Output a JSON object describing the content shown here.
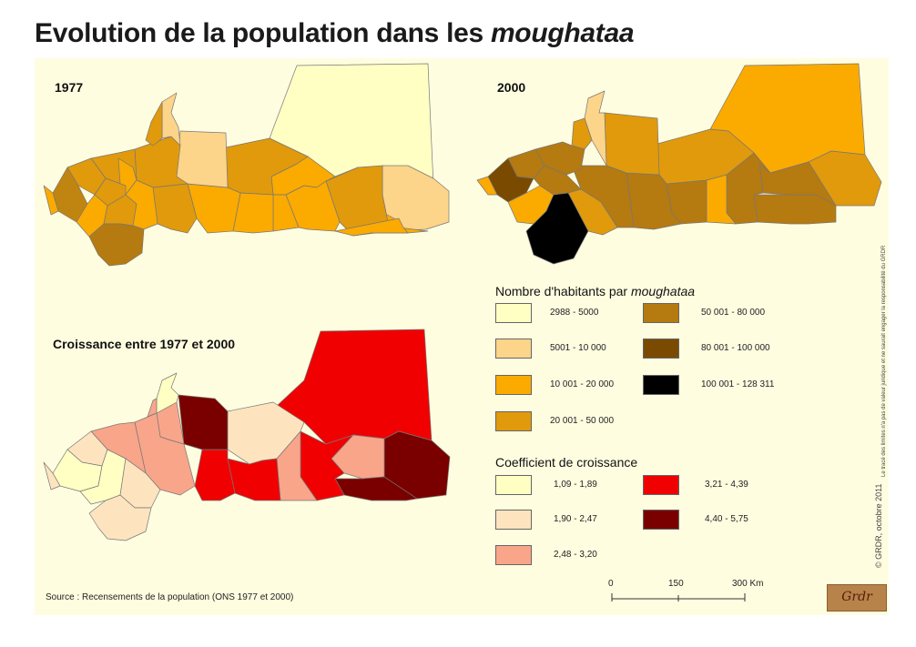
{
  "title": {
    "text": "Evolution de la population dans les",
    "text_italic": "moughataa"
  },
  "maps": {
    "label_1977": "1977",
    "label_2000": "2000",
    "label_growth": "Croissance entre 1977 et 2000"
  },
  "legend_population": {
    "heading": "Nombre d'habitants par",
    "heading_italic": "moughataa",
    "classes": [
      {
        "label": "2988 - 5000",
        "color": "#ffffc4"
      },
      {
        "label": "5001 - 10 000",
        "color": "#fcd48a"
      },
      {
        "label": "10 001 - 20 000",
        "color": "#fbaa00"
      },
      {
        "label": "20 001 -  50 000",
        "color": "#e09a0c"
      },
      {
        "label": "50 001 - 80 000",
        "color": "#b57a10"
      },
      {
        "label": "80 001 - 100 000",
        "color": "#7a4a00"
      },
      {
        "label": "100 001 - 128 311",
        "color": "#000000"
      }
    ]
  },
  "legend_growth": {
    "heading": "Coefficient de croissance",
    "classes": [
      {
        "label": "1,09 - 1,89",
        "color": "#ffffc4"
      },
      {
        "label": "1,90 - 2,47",
        "color": "#fde4bf"
      },
      {
        "label": "2,48 - 3,20",
        "color": "#f8a58a"
      },
      {
        "label": "3,21 - 4,39",
        "color": "#f00000"
      },
      {
        "label": "4,40 - 5,75",
        "color": "#7a0000"
      }
    ]
  },
  "scale_bar": {
    "tick_0": "0",
    "tick_1": "150",
    "tick_2": "300 Km"
  },
  "source": "Source : Recensements de la population (ONS 1977 et 2000)",
  "credit": "© GRDR, octobre 2011",
  "disclaimer": "Le tracé des limites n'a pas de valeur juridique et ne saurait engager la responsabilité du GRDR",
  "logo_text": "Grdr"
}
